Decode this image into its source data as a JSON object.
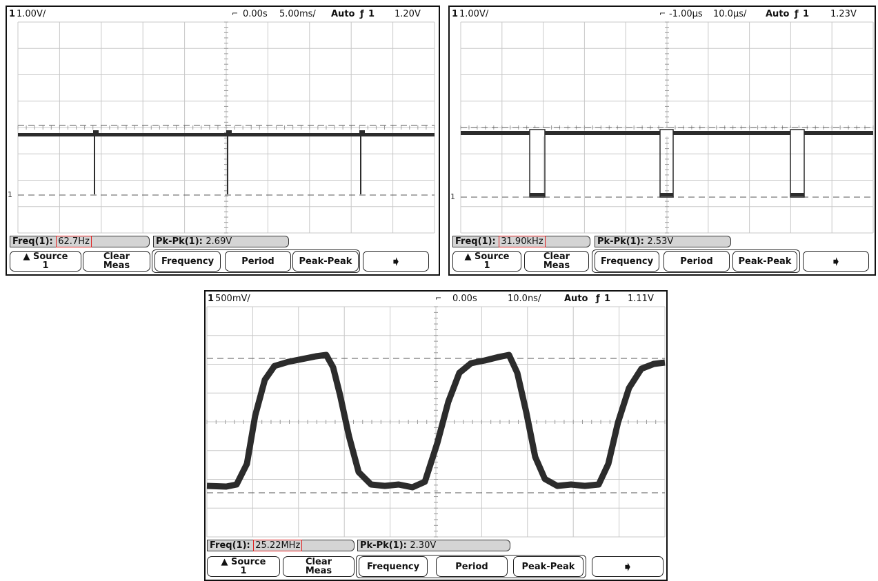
{
  "colors": {
    "trace": "#2c2c2c",
    "grid": "#c8c8c8",
    "highlight": "#e02020",
    "softkey_bg": "#d4d4d4"
  },
  "scopes": [
    {
      "header": {
        "channel": "1",
        "scale": "1.00V/",
        "delay": "0.00s",
        "timebase": "5.00ms/",
        "mode": "Auto",
        "trigger": "1",
        "level": "1.20V"
      },
      "measurements": {
        "freq_label": "Freq(1):",
        "freq_value": "62.7Hz",
        "pkpk_label": "Pk-Pk(1):",
        "pkpk_value": "2.69V"
      },
      "softkeys": {
        "source_line1": "Source",
        "source_line2": "1",
        "clear_line1": "Clear",
        "clear_line2": "Meas",
        "frequency": "Frequency",
        "period": "Period",
        "peak_peak": "Peak-Peak",
        "next_icon": "right-arrow-icon"
      }
    },
    {
      "header": {
        "channel": "1",
        "scale": "1.00V/",
        "delay": "-1.00µs",
        "timebase": "10.0µs/",
        "mode": "Auto",
        "trigger": "1",
        "level": "1.23V"
      },
      "measurements": {
        "freq_label": "Freq(1):",
        "freq_value": "31.90kHz",
        "pkpk_label": "Pk-Pk(1):",
        "pkpk_value": "2.53V"
      },
      "softkeys": {
        "source_line1": "Source",
        "source_line2": "1",
        "clear_line1": "Clear",
        "clear_line2": "Meas",
        "frequency": "Frequency",
        "period": "Period",
        "peak_peak": "Peak-Peak",
        "next_icon": "right-arrow-icon"
      }
    },
    {
      "header": {
        "channel": "1",
        "scale": "500mV/",
        "delay": "0.00s",
        "timebase": "10.0ns/",
        "mode": "Auto",
        "trigger": "1",
        "level": "1.11V"
      },
      "measurements": {
        "freq_label": "Freq(1):",
        "freq_value": "25.22MHz",
        "pkpk_label": "Pk-Pk(1):",
        "pkpk_value": "2.30V"
      },
      "softkeys": {
        "source_line1": "Source",
        "source_line2": "1",
        "clear_line1": "Clear",
        "clear_line2": "Meas",
        "frequency": "Frequency",
        "period": "Period",
        "peak_peak": "Peak-Peak",
        "next_icon": "right-arrow-icon"
      }
    }
  ]
}
